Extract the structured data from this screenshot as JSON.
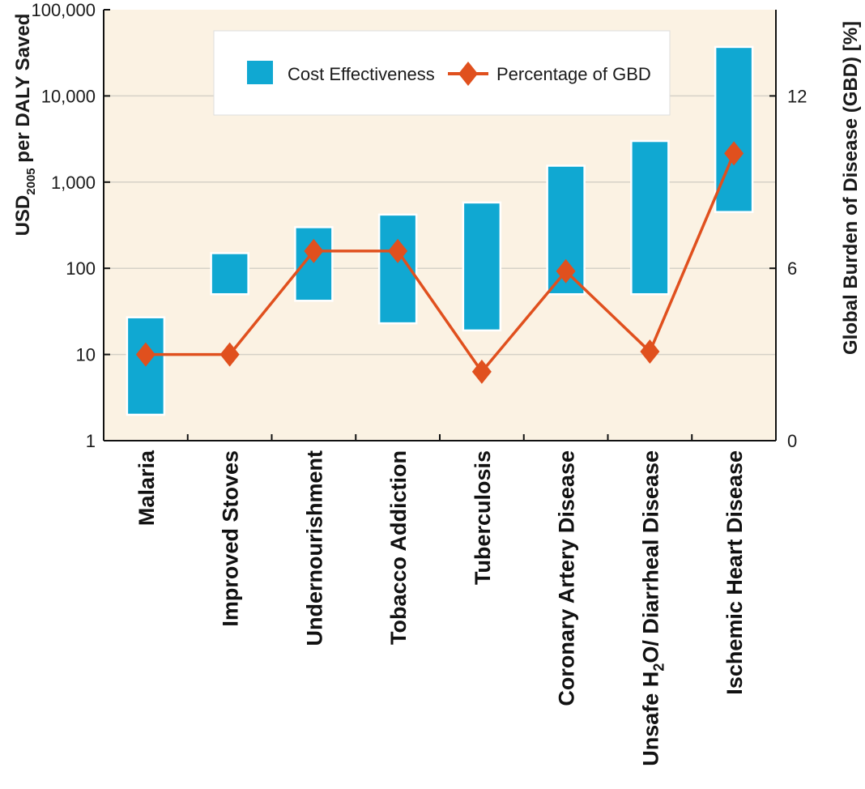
{
  "chart_data": {
    "type": "bar",
    "categories": [
      "Malaria",
      "Improved Stoves",
      "Undernourishment",
      "Tobacco Addiction",
      "Tuberculosis",
      "Coronary Artery Disease",
      "Unsafe H2O/ Diarrheal Disease",
      "Ischemic Heart Disease"
    ],
    "category_display": [
      {
        "main": "Malaria"
      },
      {
        "main": "Improved Stoves"
      },
      {
        "main": "Undernourishment"
      },
      {
        "main": "Tobacco Addiction"
      },
      {
        "main": "Tuberculosis"
      },
      {
        "main": "Coronary Artery Disease"
      },
      {
        "pre": "Unsafe H",
        "sub": "2",
        "post": "O/ Diarrheal Disease"
      },
      {
        "main": "Ischemic Heart Disease"
      }
    ],
    "series": [
      {
        "name": "Cost Effectiveness",
        "type": "range-bar",
        "axis": "left",
        "color": "#10a8d2",
        "low": [
          2,
          50,
          42,
          23,
          19,
          50,
          50,
          450
        ],
        "high": [
          27,
          150,
          300,
          420,
          580,
          1550,
          3000,
          37000
        ]
      },
      {
        "name": "Percentage of GBD",
        "type": "line",
        "axis": "right",
        "color": "#e0501e",
        "values": [
          3.0,
          3.0,
          6.6,
          6.6,
          2.4,
          5.9,
          3.1,
          10.0
        ]
      }
    ],
    "left_axis": {
      "scale": "log",
      "ylim": [
        1,
        100000
      ],
      "ticks": [
        1,
        10,
        100,
        1000,
        10000,
        100000
      ],
      "tick_labels": [
        "1",
        "10",
        "100",
        "1,000",
        "10,000",
        "100,000"
      ],
      "label": {
        "pre": "USD",
        "sub": "2005",
        "post": " per DALY Saved"
      }
    },
    "right_axis": {
      "scale": "linear",
      "ylim": [
        0,
        15
      ],
      "ticks": [
        0,
        6,
        12
      ],
      "tick_labels": [
        "0",
        "6",
        "12"
      ],
      "label": "Global Burden of Disease (GBD) [%]"
    },
    "grid": true,
    "legend": {
      "position": "top-center",
      "entries": [
        "Cost Effectiveness",
        "Percentage of GBD"
      ]
    },
    "colors": {
      "plot_background": "#fbf2e3",
      "gridline": "#d6d1c7",
      "axis": "#111111"
    }
  }
}
